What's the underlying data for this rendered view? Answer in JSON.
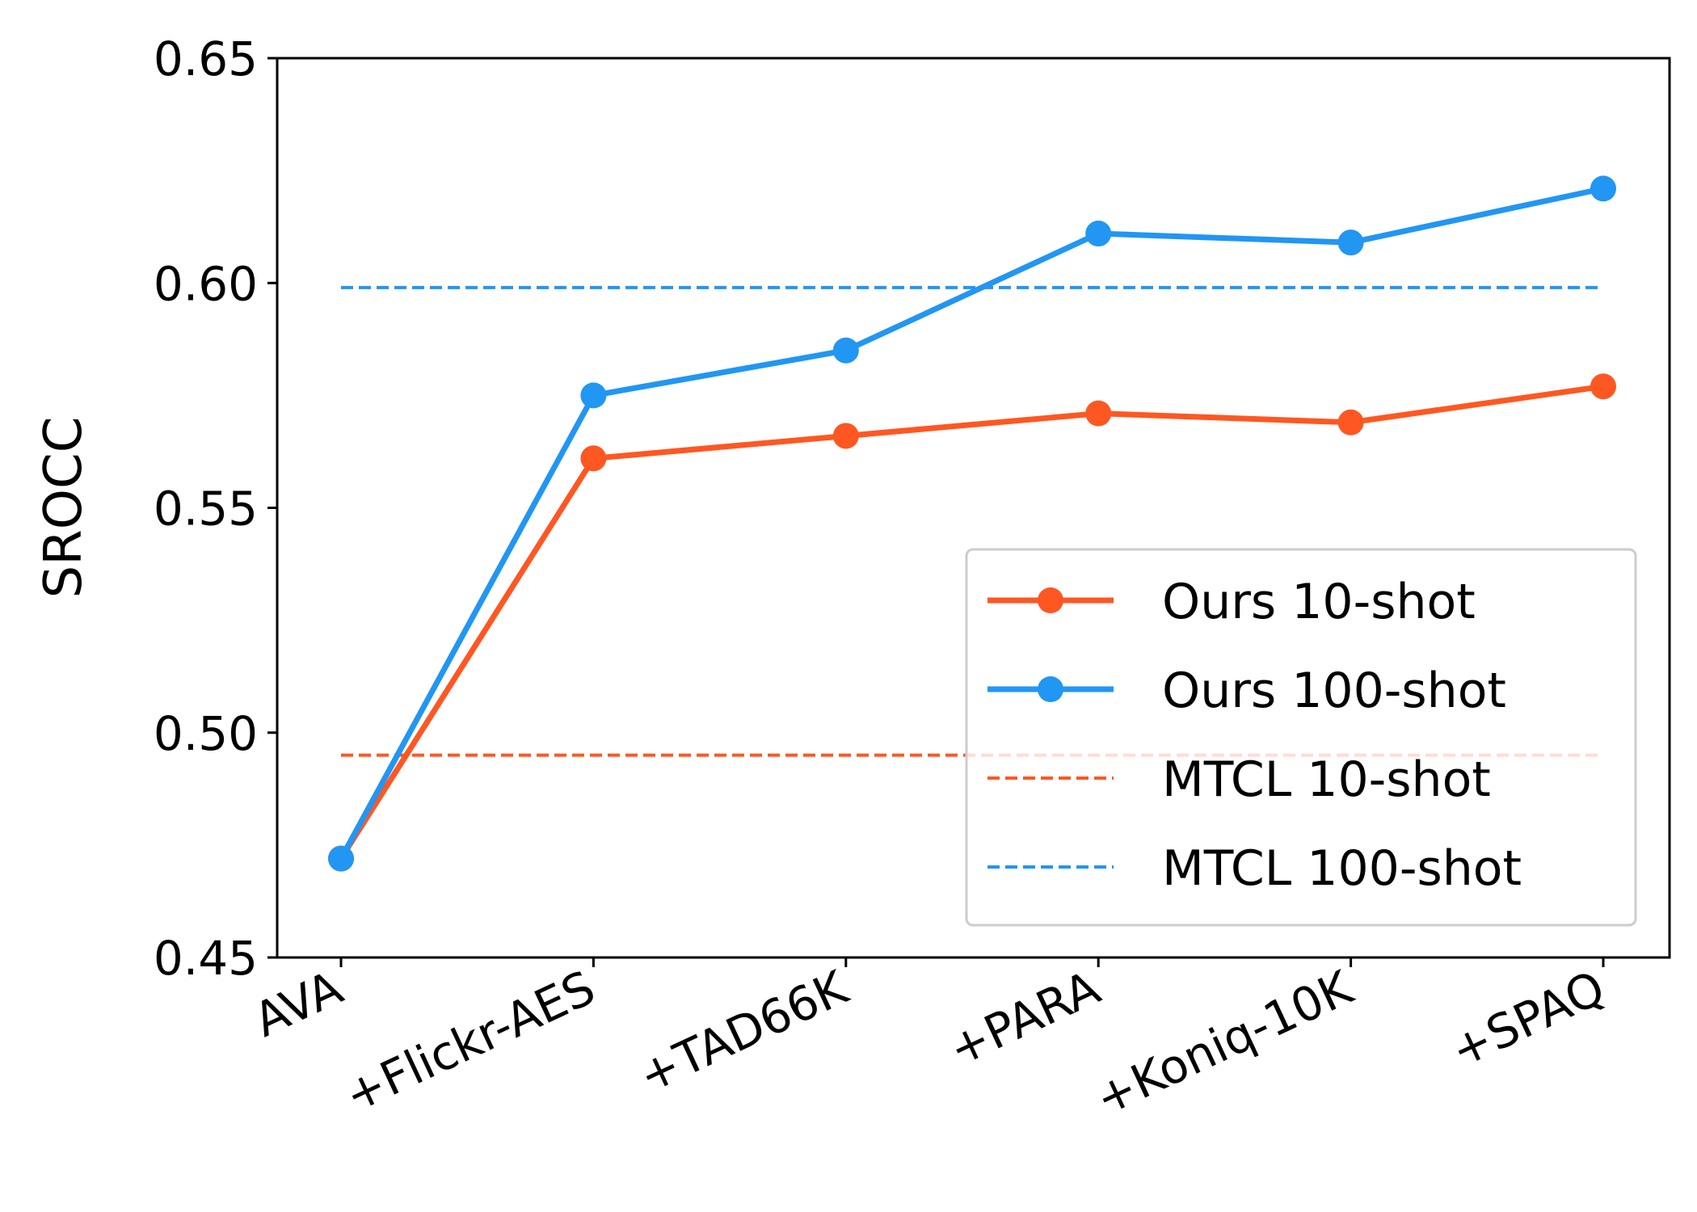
{
  "chart_data": {
    "type": "line",
    "title": "",
    "xlabel": "",
    "ylabel": "SROCC",
    "categories": [
      "AVA",
      "+Flickr-AES",
      "+TAD66K",
      "+PARA",
      "+Koniq-10K",
      "+SPAQ"
    ],
    "ylim": [
      0.45,
      0.65
    ],
    "yticks": [
      "0.45",
      "0.50",
      "0.55",
      "0.60",
      "0.65"
    ],
    "grid": false,
    "legend_position": "lower-right",
    "series": [
      {
        "name": "Ours 10-shot",
        "style": "solid-marker",
        "color": "#FF5722",
        "values": [
          0.472,
          0.561,
          0.566,
          0.571,
          0.569,
          0.577
        ]
      },
      {
        "name": "Ours 100-shot",
        "style": "solid-marker",
        "color": "#2196F3",
        "values": [
          0.472,
          0.575,
          0.585,
          0.611,
          0.609,
          0.621
        ]
      },
      {
        "name": "MTCL 10-shot",
        "style": "dashed",
        "color": "#FF5722",
        "values": [
          0.495,
          0.495,
          0.495,
          0.495,
          0.495,
          0.495
        ]
      },
      {
        "name": "MTCL 100-shot",
        "style": "dashed",
        "color": "#2196F3",
        "values": [
          0.599,
          0.599,
          0.599,
          0.599,
          0.599,
          0.599
        ]
      }
    ]
  }
}
